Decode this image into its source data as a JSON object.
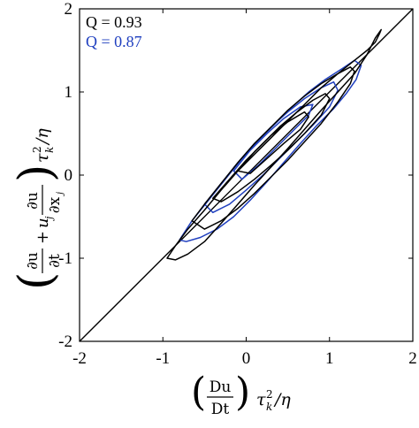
{
  "chart_data": {
    "type": "line",
    "x_ticks": [
      "-2",
      "-1",
      "0",
      "1",
      "2"
    ],
    "y_ticks": [
      "-2",
      "-1",
      "0",
      "1",
      "2"
    ],
    "xlim": [
      -2,
      2
    ],
    "ylim": [
      -2,
      2
    ],
    "grid": false,
    "legend_placement": "top-left",
    "xlabel": {
      "num": "Du",
      "den": "Dt",
      "tau": "τ",
      "tau_sub": "k",
      "tau_sup": "2",
      "rest": "/η"
    },
    "ylabel": {
      "t1_num": "∂u",
      "t1_den": "∂t",
      "plus": "+",
      "uj": "u",
      "uj_sub": "j",
      "t2_num": "∂u",
      "t2_den": "∂x",
      "t2_den_sub": "j",
      "tau": "τ",
      "tau_sub": "k",
      "tau_sup": "2",
      "rest": "/η"
    },
    "reference_line": {
      "name": "",
      "color": "#000000",
      "x": [
        -2,
        2
      ],
      "y": [
        -2,
        2
      ]
    },
    "series": [
      {
        "label": "Q = 0.93",
        "color": "#000000",
        "contours": [
          {
            "x": [
              -0.95,
              -0.85,
              -0.7,
              -0.5,
              -0.3,
              -0.1,
              0.1,
              0.3,
              0.5,
              0.7,
              0.9,
              1.1,
              1.3,
              1.45,
              1.55,
              1.6,
              1.62,
              1.55,
              1.45,
              1.3,
              1.1,
              0.9,
              0.7,
              0.5,
              0.3,
              0.1,
              -0.1,
              -0.3,
              -0.5,
              -0.7,
              -0.85,
              -0.95
            ],
            "y": [
              -1.0,
              -0.85,
              -0.65,
              -0.42,
              -0.18,
              0.05,
              0.25,
              0.45,
              0.65,
              0.85,
              1.05,
              1.22,
              1.38,
              1.5,
              1.6,
              1.7,
              1.75,
              1.65,
              1.45,
              1.22,
              1.0,
              0.78,
              0.55,
              0.32,
              0.1,
              -0.12,
              -0.35,
              -0.58,
              -0.8,
              -0.95,
              -1.02,
              -1.0
            ]
          },
          {
            "x": [
              -0.65,
              -0.5,
              -0.3,
              -0.1,
              0.1,
              0.3,
              0.5,
              0.7,
              0.9,
              1.1,
              1.25,
              1.3,
              1.25,
              1.1,
              0.9,
              0.7,
              0.5,
              0.3,
              0.1,
              -0.1,
              -0.3,
              -0.5,
              -0.65
            ],
            "y": [
              -0.55,
              -0.35,
              -0.1,
              0.15,
              0.38,
              0.58,
              0.78,
              0.95,
              1.1,
              1.22,
              1.3,
              1.25,
              1.1,
              0.88,
              0.62,
              0.4,
              0.18,
              -0.02,
              -0.22,
              -0.4,
              -0.55,
              -0.65,
              -0.55
            ]
          },
          {
            "x": [
              -0.4,
              -0.2,
              0.0,
              0.2,
              0.4,
              0.6,
              0.8,
              0.95,
              1.0,
              0.9,
              0.7,
              0.5,
              0.3,
              0.1,
              -0.1,
              -0.3,
              -0.4
            ],
            "y": [
              -0.28,
              -0.05,
              0.18,
              0.38,
              0.58,
              0.75,
              0.9,
              0.98,
              0.92,
              0.72,
              0.5,
              0.3,
              0.12,
              -0.05,
              -0.2,
              -0.32,
              -0.28
            ]
          },
          {
            "x": [
              -0.1,
              0.1,
              0.3,
              0.5,
              0.7,
              0.75,
              0.65,
              0.45,
              0.25,
              0.05,
              -0.1
            ],
            "y": [
              0.05,
              0.28,
              0.48,
              0.64,
              0.76,
              0.7,
              0.55,
              0.38,
              0.2,
              0.02,
              0.05
            ]
          }
        ]
      },
      {
        "label": "Q = 0.87",
        "color": "#1f3fbf",
        "contours": [
          {
            "x": [
              -0.8,
              -0.65,
              -0.45,
              -0.25,
              -0.05,
              0.15,
              0.35,
              0.55,
              0.75,
              0.95,
              1.15,
              1.3,
              1.38,
              1.32,
              1.2,
              1.05,
              0.85,
              0.65,
              0.45,
              0.25,
              0.05,
              -0.15,
              -0.35,
              -0.55,
              -0.72,
              -0.8
            ],
            "y": [
              -0.78,
              -0.55,
              -0.3,
              -0.05,
              0.2,
              0.42,
              0.62,
              0.82,
              1.0,
              1.15,
              1.28,
              1.38,
              1.32,
              1.15,
              0.98,
              0.8,
              0.6,
              0.38,
              0.15,
              -0.08,
              -0.3,
              -0.5,
              -0.65,
              -0.75,
              -0.8,
              -0.78
            ]
          },
          {
            "x": [
              -0.5,
              -0.3,
              -0.1,
              0.1,
              0.3,
              0.5,
              0.7,
              0.9,
              1.05,
              1.1,
              1.0,
              0.8,
              0.6,
              0.4,
              0.2,
              0.0,
              -0.2,
              -0.4,
              -0.5
            ],
            "y": [
              -0.35,
              -0.1,
              0.15,
              0.38,
              0.58,
              0.76,
              0.92,
              1.05,
              1.12,
              1.02,
              0.82,
              0.6,
              0.4,
              0.2,
              0.0,
              -0.18,
              -0.35,
              -0.45,
              -0.35
            ]
          },
          {
            "x": [
              -0.15,
              0.05,
              0.25,
              0.45,
              0.65,
              0.8,
              0.75,
              0.55,
              0.35,
              0.15,
              -0.05,
              -0.15
            ],
            "y": [
              0.05,
              0.3,
              0.5,
              0.68,
              0.82,
              0.85,
              0.72,
              0.52,
              0.32,
              0.12,
              -0.05,
              0.05
            ]
          }
        ]
      }
    ]
  }
}
